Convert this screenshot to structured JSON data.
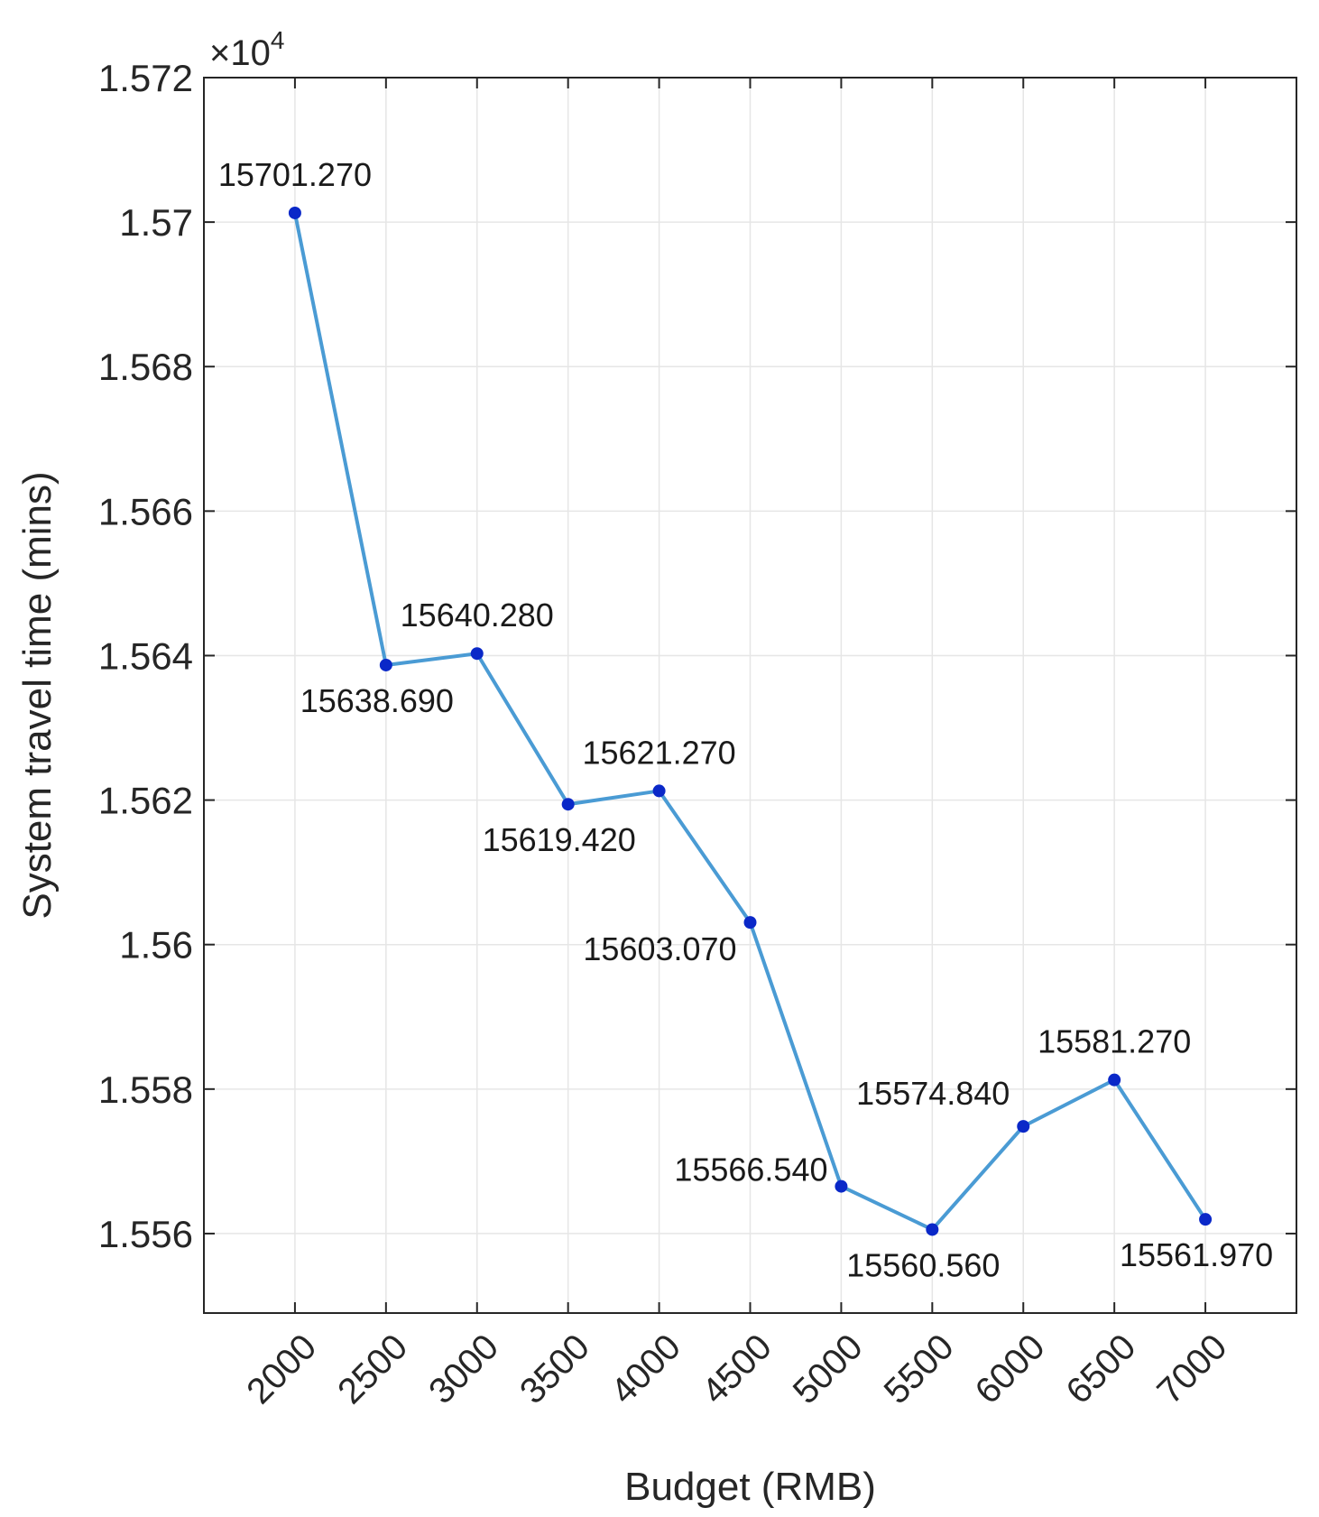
{
  "chart_data": {
    "type": "line",
    "title": "",
    "xlabel": "Budget (RMB)",
    "ylabel": "System travel time (mins)",
    "y_exponent_label": "×10",
    "y_exponent_power": "4",
    "x": [
      2000,
      2500,
      3000,
      3500,
      4000,
      4500,
      5000,
      5500,
      6000,
      6500,
      7000
    ],
    "x_tick_labels": [
      "2000",
      "2500",
      "3000",
      "3500",
      "4000",
      "4500",
      "5000",
      "5500",
      "6000",
      "6500",
      "7000"
    ],
    "y_ticks": [
      15560,
      15580,
      15600,
      15620,
      15640,
      15660,
      15680,
      15700,
      15720
    ],
    "y_tick_labels": [
      "1.556",
      "1.558",
      "1.56",
      "1.562",
      "1.564",
      "1.566",
      "1.568",
      "1.57",
      "1.572"
    ],
    "ylim": [
      15549,
      15720
    ],
    "xlim": [
      1500,
      7500
    ],
    "grid": true,
    "series": [
      {
        "values": [
          15701.27,
          15638.69,
          15640.28,
          15619.42,
          15621.27,
          15603.07,
          15566.54,
          15560.56,
          15574.84,
          15581.27,
          15561.97
        ],
        "color": "#4a9bd4",
        "marker_color": "#0a28c8"
      }
    ],
    "data_labels": [
      {
        "text": "15701.270",
        "placement": "above"
      },
      {
        "text": "15638.690",
        "placement": "below"
      },
      {
        "text": "15640.280",
        "placement": "above"
      },
      {
        "text": "15619.420",
        "placement": "below"
      },
      {
        "text": "15621.270",
        "placement": "above"
      },
      {
        "text": "15603.070",
        "placement": "below-left"
      },
      {
        "text": "15566.540",
        "placement": "left"
      },
      {
        "text": "15560.560",
        "placement": "below"
      },
      {
        "text": "15574.840",
        "placement": "above-left"
      },
      {
        "text": "15581.270",
        "placement": "above"
      },
      {
        "text": "15561.970",
        "placement": "below"
      }
    ]
  }
}
